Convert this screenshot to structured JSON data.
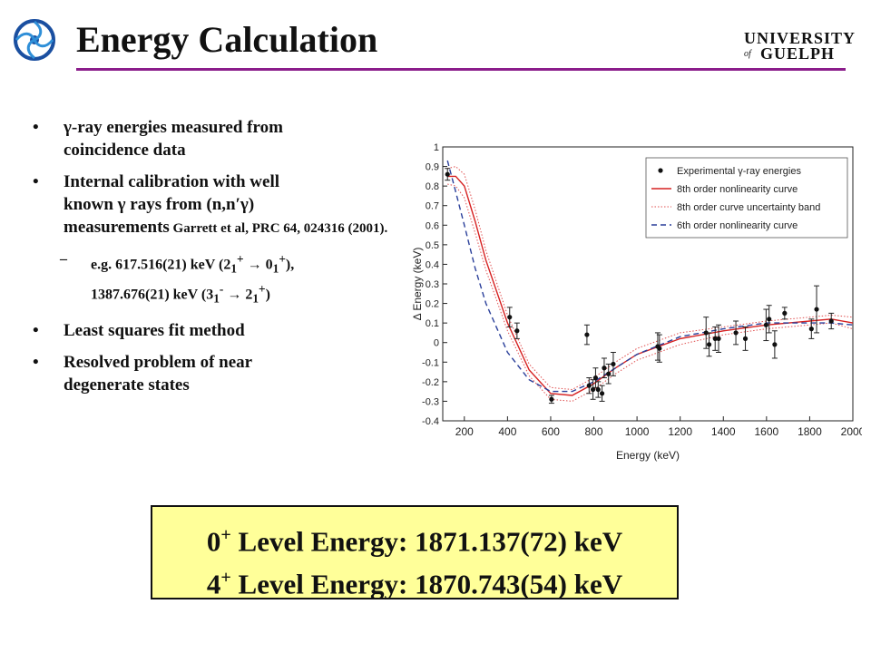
{
  "slide": {
    "title": "Energy Calculation",
    "logo_text": [
      "UNIVERSITY",
      "of",
      "GUELPH"
    ],
    "bullets": [
      {
        "lines": [
          "γ-ray energies measured from",
          "coincidence data"
        ]
      },
      {
        "lines": [
          "Internal calibration with well",
          "known γ rays from (n,n′γ)"
        ],
        "line3": "measurements",
        "ref": " Garrett et al, PRC 64, 024316 (2001)."
      },
      {
        "sub": true,
        "prefix": "e.g.  617.516(21) keV (2",
        "sup1": "+",
        "sub1": "1",
        "mid": " → 0",
        "sup2": "+",
        "sub2": "1",
        "end": "),",
        "line2a": "1387.676(21) keV (3",
        "sup3": "-",
        "sub3": "1",
        "line2b": " → 2",
        "sup4": "+",
        "sub4": "1",
        "line2c": ")"
      },
      {
        "lines": [
          "Least squares fit method"
        ]
      },
      {
        "lines": [
          "Resolved problem of near",
          "degenerate states"
        ]
      }
    ],
    "result_box": {
      "line1_sup": "0",
      "line1_plus": "+",
      "line1": " Level Energy: 1871.137(72) keV",
      "line2_sup": "4",
      "line2_plus": "+",
      "line2": " Level Energy: 1870.743(54) keV"
    }
  },
  "chart_data": {
    "type": "line",
    "xlabel": "Energy (keV)",
    "ylabel": "Δ Energy (keV)",
    "xlim": [
      100,
      2000
    ],
    "ylim": [
      -0.4,
      1.0
    ],
    "xticks": [
      200,
      400,
      600,
      800,
      1000,
      1200,
      1400,
      1600,
      1800,
      2000
    ],
    "yticks": [
      -0.4,
      -0.3,
      -0.2,
      -0.1,
      0,
      0.1,
      0.2,
      0.3,
      0.4,
      0.5,
      0.6,
      0.7,
      0.8,
      0.9,
      1
    ],
    "legend_position": "top-right",
    "legend": [
      {
        "label": "Experimental γ-ray energies",
        "style": "points"
      },
      {
        "label": "8th order nonlinearity curve",
        "style": "solid-red"
      },
      {
        "label": "8th order curve uncertainty band",
        "style": "dotted-red"
      },
      {
        "label": "6th order nonlinearity curve",
        "style": "dashed-blue"
      }
    ],
    "points": [
      {
        "x": 122,
        "y": 0.86,
        "err": 0.03
      },
      {
        "x": 410,
        "y": 0.13,
        "err": 0.05
      },
      {
        "x": 444,
        "y": 0.06,
        "err": 0.04
      },
      {
        "x": 604,
        "y": -0.29,
        "err": 0.02
      },
      {
        "x": 768,
        "y": 0.04,
        "err": 0.05
      },
      {
        "x": 778,
        "y": -0.22,
        "err": 0.04
      },
      {
        "x": 796,
        "y": -0.24,
        "err": 0.05
      },
      {
        "x": 808,
        "y": -0.18,
        "err": 0.05
      },
      {
        "x": 820,
        "y": -0.24,
        "err": 0.04
      },
      {
        "x": 838,
        "y": -0.26,
        "err": 0.04
      },
      {
        "x": 848,
        "y": -0.13,
        "err": 0.05
      },
      {
        "x": 868,
        "y": -0.16,
        "err": 0.05
      },
      {
        "x": 890,
        "y": -0.11,
        "err": 0.06
      },
      {
        "x": 1096,
        "y": -0.02,
        "err": 0.07
      },
      {
        "x": 1104,
        "y": -0.03,
        "err": 0.07
      },
      {
        "x": 1320,
        "y": 0.05,
        "err": 0.08
      },
      {
        "x": 1334,
        "y": -0.01,
        "err": 0.06
      },
      {
        "x": 1362,
        "y": 0.02,
        "err": 0.06
      },
      {
        "x": 1378,
        "y": 0.02,
        "err": 0.07
      },
      {
        "x": 1458,
        "y": 0.05,
        "err": 0.06
      },
      {
        "x": 1502,
        "y": 0.02,
        "err": 0.06
      },
      {
        "x": 1598,
        "y": 0.09,
        "err": 0.08
      },
      {
        "x": 1612,
        "y": 0.12,
        "err": 0.07
      },
      {
        "x": 1638,
        "y": -0.01,
        "err": 0.07
      },
      {
        "x": 1684,
        "y": 0.15,
        "err": 0.03
      },
      {
        "x": 1808,
        "y": 0.07,
        "err": 0.05
      },
      {
        "x": 1832,
        "y": 0.17,
        "err": 0.12
      },
      {
        "x": 1900,
        "y": 0.11,
        "err": 0.04
      }
    ],
    "series": [
      {
        "style": "solid-red",
        "x": [
          122,
          160,
          200,
          250,
          300,
          400,
          500,
          600,
          700,
          800,
          900,
          1000,
          1200,
          1400,
          1600,
          1800,
          1900,
          2000
        ],
        "y": [
          0.85,
          0.85,
          0.8,
          0.62,
          0.42,
          0.1,
          -0.14,
          -0.26,
          -0.27,
          -0.21,
          -0.13,
          -0.06,
          0.02,
          0.06,
          0.09,
          0.11,
          0.12,
          0.1
        ]
      },
      {
        "style": "dotted-red",
        "x": [
          122,
          160,
          200,
          250,
          300,
          400,
          500,
          600,
          700,
          800,
          900,
          1000,
          1200,
          1400,
          1600,
          1800,
          1900,
          2000
        ],
        "y": [
          0.89,
          0.9,
          0.86,
          0.68,
          0.47,
          0.14,
          -0.11,
          -0.23,
          -0.24,
          -0.18,
          -0.1,
          -0.03,
          0.05,
          0.08,
          0.11,
          0.13,
          0.14,
          0.13
        ]
      },
      {
        "style": "dotted-red",
        "x": [
          122,
          160,
          200,
          250,
          300,
          400,
          500,
          600,
          700,
          800,
          900,
          1000,
          1200,
          1400,
          1600,
          1800,
          1900,
          2000
        ],
        "y": [
          0.81,
          0.8,
          0.74,
          0.56,
          0.37,
          0.06,
          -0.17,
          -0.29,
          -0.3,
          -0.24,
          -0.16,
          -0.09,
          -0.01,
          0.04,
          0.07,
          0.09,
          0.1,
          0.07
        ]
      },
      {
        "style": "dashed-blue",
        "x": [
          122,
          160,
          200,
          250,
          300,
          400,
          500,
          600,
          700,
          800,
          900,
          1000,
          1200,
          1400,
          1600,
          1800,
          1900,
          2000
        ],
        "y": [
          0.93,
          0.77,
          0.6,
          0.38,
          0.2,
          -0.05,
          -0.19,
          -0.25,
          -0.25,
          -0.2,
          -0.13,
          -0.06,
          0.03,
          0.07,
          0.1,
          0.1,
          0.1,
          0.09
        ]
      }
    ]
  }
}
